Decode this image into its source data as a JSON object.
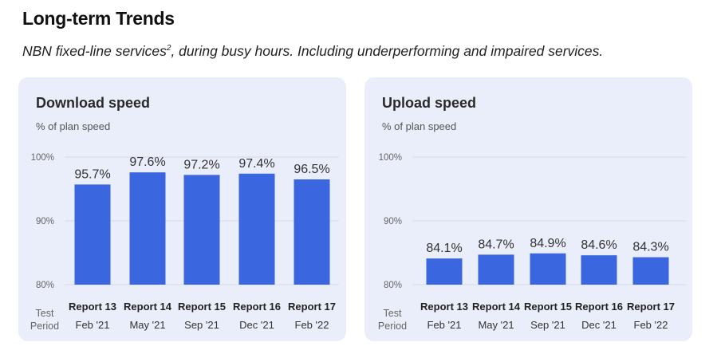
{
  "header": {
    "title": "Long-term Trends",
    "subtitle": "NBN fixed-line services",
    "subtitle_sup": "2",
    "subtitle_rest": ", during busy hours. Including underperforming and impaired services."
  },
  "colors": {
    "bar": "#3a66e0",
    "card": "#eaedfa",
    "grid": "#d6d9e6"
  },
  "chart_data": [
    {
      "type": "bar",
      "title": "Download speed",
      "ylabel": "% of plan speed",
      "xlabel": "Test Period",
      "ylim": [
        80,
        100
      ],
      "yticks": [
        "80%",
        "90%",
        "100%"
      ],
      "grid": true,
      "categories": [
        "Report 13",
        "Report 14",
        "Report 15",
        "Report 16",
        "Report 17"
      ],
      "subcategories": [
        "Feb '21",
        "May '21",
        "Sep '21",
        "Dec '21",
        "Feb '22"
      ],
      "values": [
        95.7,
        97.6,
        97.2,
        97.4,
        96.5
      ],
      "labels": [
        "95.7%",
        "97.6%",
        "97.2%",
        "97.4%",
        "96.5%"
      ]
    },
    {
      "type": "bar",
      "title": "Upload speed",
      "ylabel": "% of plan speed",
      "xlabel": "Test Period",
      "ylim": [
        80,
        100
      ],
      "yticks": [
        "80%",
        "90%",
        "100%"
      ],
      "grid": true,
      "categories": [
        "Report 13",
        "Report 14",
        "Report 15",
        "Report 16",
        "Report 17"
      ],
      "subcategories": [
        "Feb '21",
        "May '21",
        "Sep '21",
        "Dec '21",
        "Feb '22"
      ],
      "values": [
        84.1,
        84.7,
        84.9,
        84.6,
        84.3
      ],
      "labels": [
        "84.1%",
        "84.7%",
        "84.9%",
        "84.6%",
        "84.3%"
      ]
    }
  ]
}
